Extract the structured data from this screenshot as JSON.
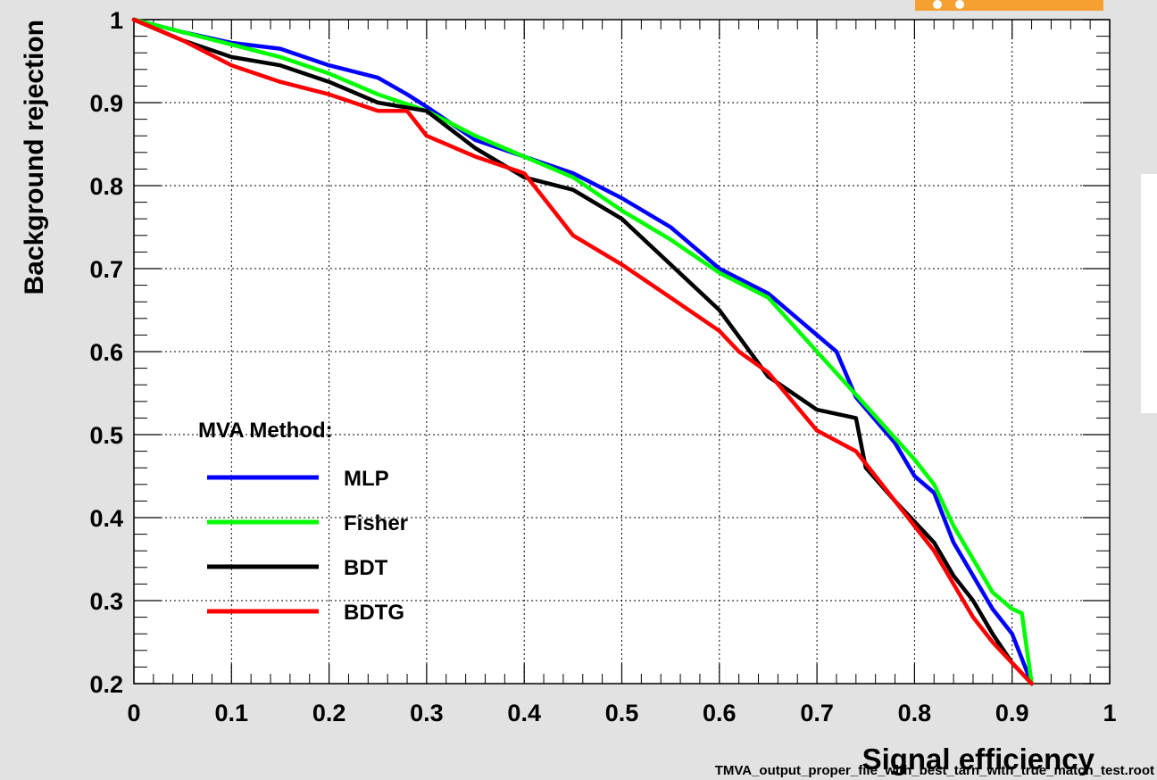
{
  "chart_data": {
    "type": "line",
    "title": "",
    "xlabel": "Signal efficiency",
    "ylabel": "Background rejection",
    "xlim": [
      0,
      1
    ],
    "ylim": [
      0.2,
      1
    ],
    "x_ticks": [
      "0",
      "0.1",
      "0.2",
      "0.3",
      "0.4",
      "0.5",
      "0.6",
      "0.7",
      "0.8",
      "0.9",
      "1"
    ],
    "y_ticks": [
      "0.2",
      "0.3",
      "0.4",
      "0.5",
      "0.6",
      "0.7",
      "0.8",
      "0.9",
      "1"
    ],
    "grid": true,
    "legend_title": "MVA Method:",
    "legend_position": "bottom-left",
    "series": [
      {
        "name": "MLP",
        "color": "#0000ff",
        "x": [
          0,
          0.05,
          0.1,
          0.15,
          0.2,
          0.25,
          0.28,
          0.3,
          0.35,
          0.4,
          0.45,
          0.5,
          0.55,
          0.6,
          0.65,
          0.7,
          0.72,
          0.74,
          0.78,
          0.8,
          0.82,
          0.84,
          0.86,
          0.88,
          0.9,
          0.92
        ],
        "y": [
          1,
          0.985,
          0.972,
          0.965,
          0.945,
          0.93,
          0.91,
          0.895,
          0.855,
          0.835,
          0.815,
          0.785,
          0.75,
          0.7,
          0.67,
          0.62,
          0.6,
          0.545,
          0.49,
          0.45,
          0.43,
          0.37,
          0.33,
          0.29,
          0.26,
          0.2
        ]
      },
      {
        "name": "Fisher",
        "color": "#00ff00",
        "x": [
          0,
          0.05,
          0.1,
          0.15,
          0.2,
          0.25,
          0.3,
          0.35,
          0.4,
          0.45,
          0.5,
          0.55,
          0.6,
          0.65,
          0.7,
          0.75,
          0.8,
          0.82,
          0.84,
          0.86,
          0.88,
          0.9,
          0.91,
          0.92
        ],
        "y": [
          1,
          0.985,
          0.97,
          0.955,
          0.935,
          0.91,
          0.89,
          0.86,
          0.835,
          0.81,
          0.77,
          0.735,
          0.695,
          0.665,
          0.6,
          0.535,
          0.47,
          0.44,
          0.39,
          0.35,
          0.31,
          0.29,
          0.285,
          0.2
        ]
      },
      {
        "name": "BDT",
        "color": "#000000",
        "x": [
          0,
          0.05,
          0.1,
          0.15,
          0.2,
          0.25,
          0.3,
          0.35,
          0.4,
          0.45,
          0.5,
          0.55,
          0.6,
          0.65,
          0.7,
          0.74,
          0.75,
          0.78,
          0.8,
          0.82,
          0.84,
          0.86,
          0.88,
          0.9,
          0.92
        ],
        "y": [
          1,
          0.975,
          0.955,
          0.945,
          0.925,
          0.9,
          0.89,
          0.845,
          0.81,
          0.795,
          0.76,
          0.705,
          0.65,
          0.57,
          0.53,
          0.52,
          0.46,
          0.42,
          0.395,
          0.37,
          0.33,
          0.3,
          0.26,
          0.225,
          0.2
        ]
      },
      {
        "name": "BDTG",
        "color": "#ff0000",
        "x": [
          0,
          0.05,
          0.1,
          0.15,
          0.2,
          0.25,
          0.28,
          0.3,
          0.35,
          0.4,
          0.45,
          0.5,
          0.55,
          0.6,
          0.62,
          0.65,
          0.7,
          0.74,
          0.76,
          0.78,
          0.8,
          0.82,
          0.84,
          0.86,
          0.88,
          0.9,
          0.92
        ],
        "y": [
          1,
          0.975,
          0.945,
          0.925,
          0.91,
          0.89,
          0.89,
          0.86,
          0.835,
          0.815,
          0.74,
          0.705,
          0.665,
          0.625,
          0.6,
          0.575,
          0.505,
          0.48,
          0.45,
          0.42,
          0.39,
          0.36,
          0.32,
          0.28,
          0.25,
          0.225,
          0.2
        ]
      }
    ]
  },
  "footer_filename": "TMVA_output_proper_file_with_best_tarn_with_true_match_test.root"
}
